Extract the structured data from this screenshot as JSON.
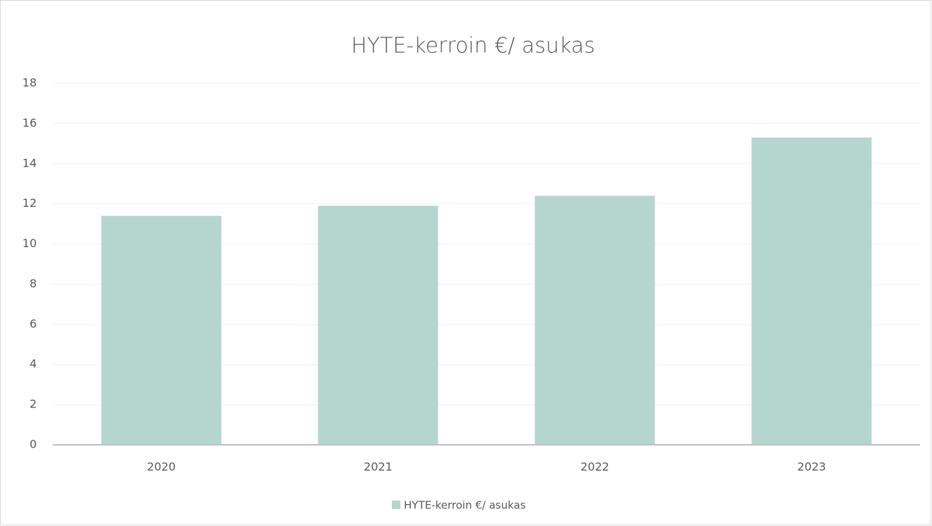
{
  "chart_data": {
    "type": "bar",
    "title": "HYTE-kerroin €/ asukas",
    "categories": [
      "2020",
      "2021",
      "2022",
      "2023"
    ],
    "series": [
      {
        "name": "HYTE-kerroin €/ asukas",
        "color": "#b5d6cf",
        "values": [
          11.4,
          11.9,
          12.4,
          15.3
        ]
      }
    ],
    "ylim": [
      0,
      18
    ],
    "yticks": [
      0,
      2,
      4,
      6,
      8,
      10,
      12,
      14,
      16,
      18
    ],
    "grid": true,
    "legend": "bottom"
  }
}
